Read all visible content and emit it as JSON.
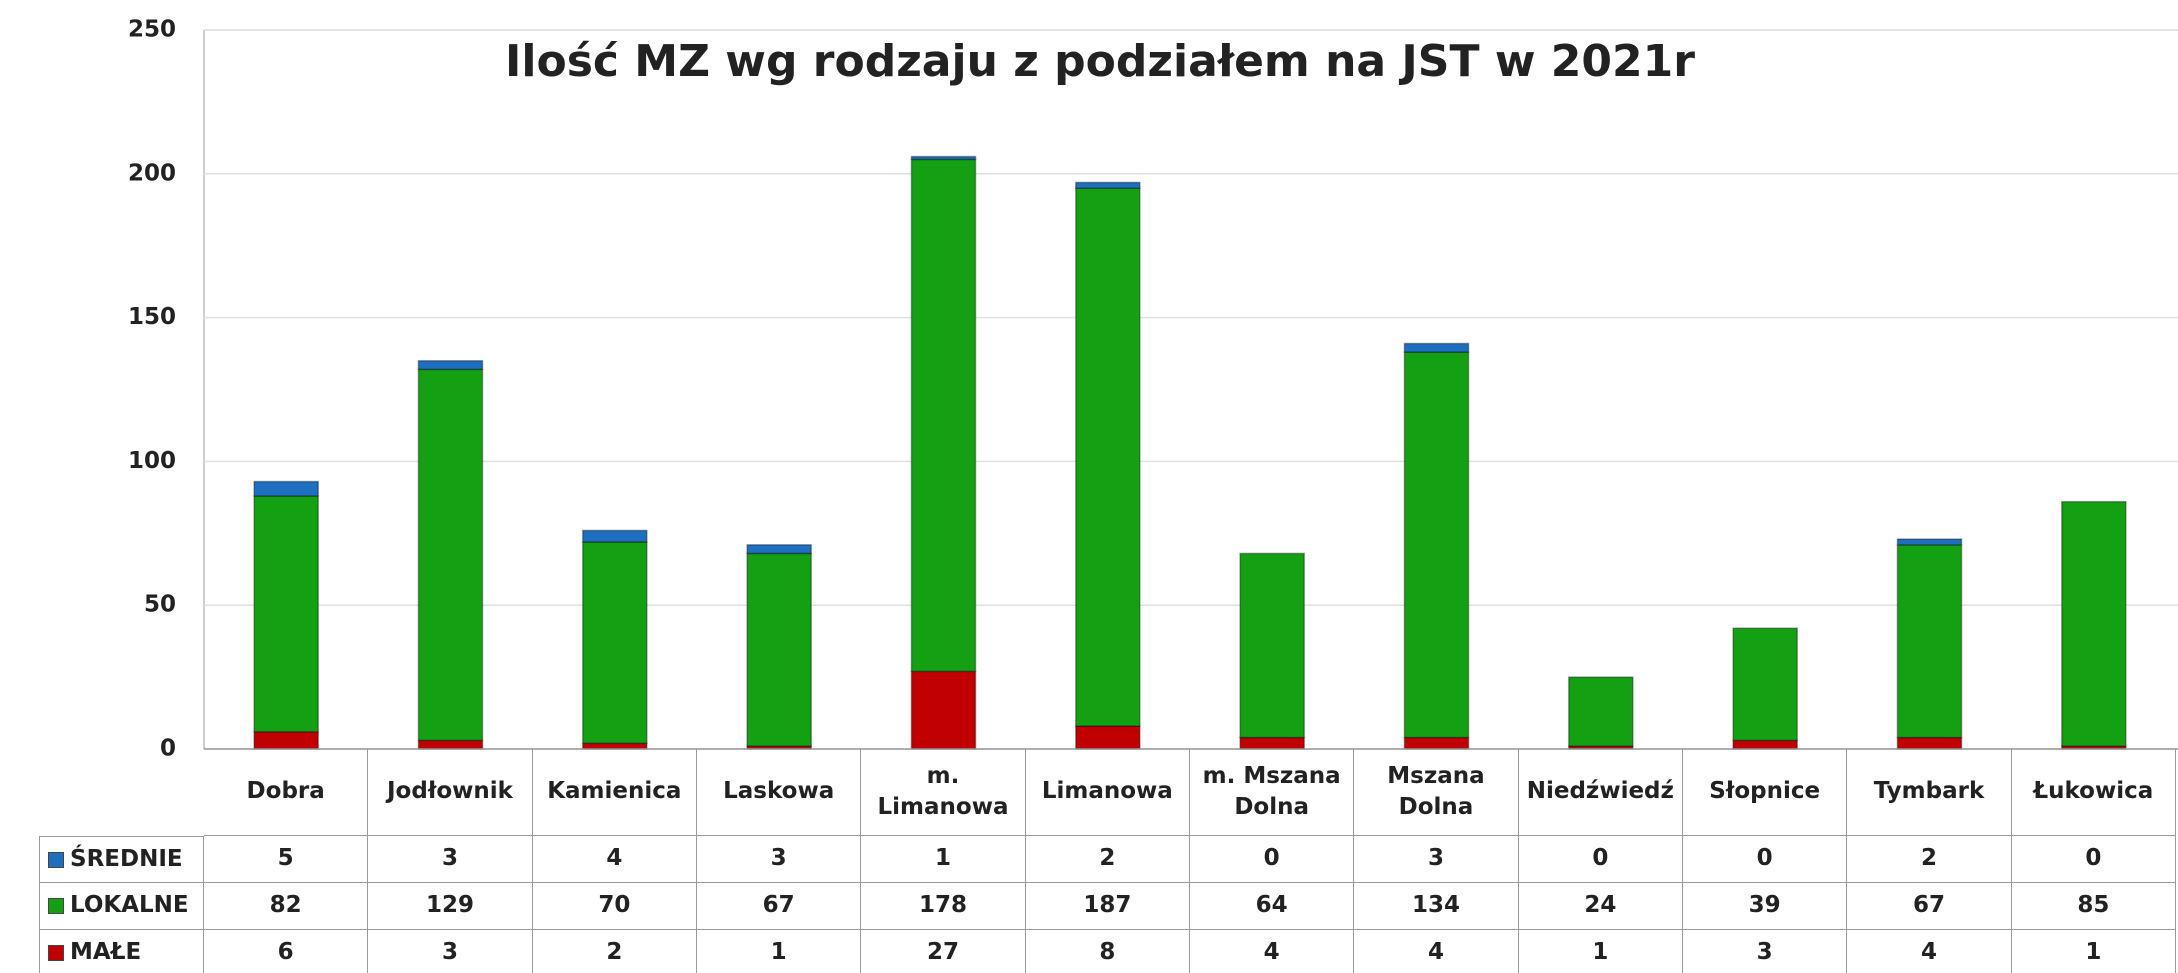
{
  "chart_data": {
    "type": "stacked_bar",
    "title": "Ilość MZ wg rodzaju z  podziałem na JST w 2021r",
    "categories": [
      "Dobra",
      "Jodłownik",
      "Kamienica",
      "Laskowa",
      "m. Limanowa",
      "Limanowa",
      "m. Mszana Dolna",
      "Mszana Dolna",
      "Niedźwiedź",
      "Słopnice",
      "Tymbark",
      "Łukowica"
    ],
    "series": [
      {
        "name": "ŚREDNIE",
        "color": "#1f6fc0",
        "values": [
          5,
          3,
          4,
          3,
          1,
          2,
          0,
          3,
          0,
          0,
          2,
          0
        ]
      },
      {
        "name": "LOKALNE",
        "color": "#13a013",
        "values": [
          82,
          129,
          70,
          67,
          178,
          187,
          64,
          134,
          24,
          39,
          67,
          85
        ]
      },
      {
        "name": "MAŁE",
        "color": "#c00000",
        "values": [
          6,
          3,
          2,
          1,
          27,
          8,
          4,
          4,
          1,
          3,
          4,
          1
        ]
      }
    ],
    "ylim": [
      0,
      250
    ],
    "yticks": [
      0,
      50,
      100,
      150,
      200,
      250
    ],
    "grid": true
  }
}
